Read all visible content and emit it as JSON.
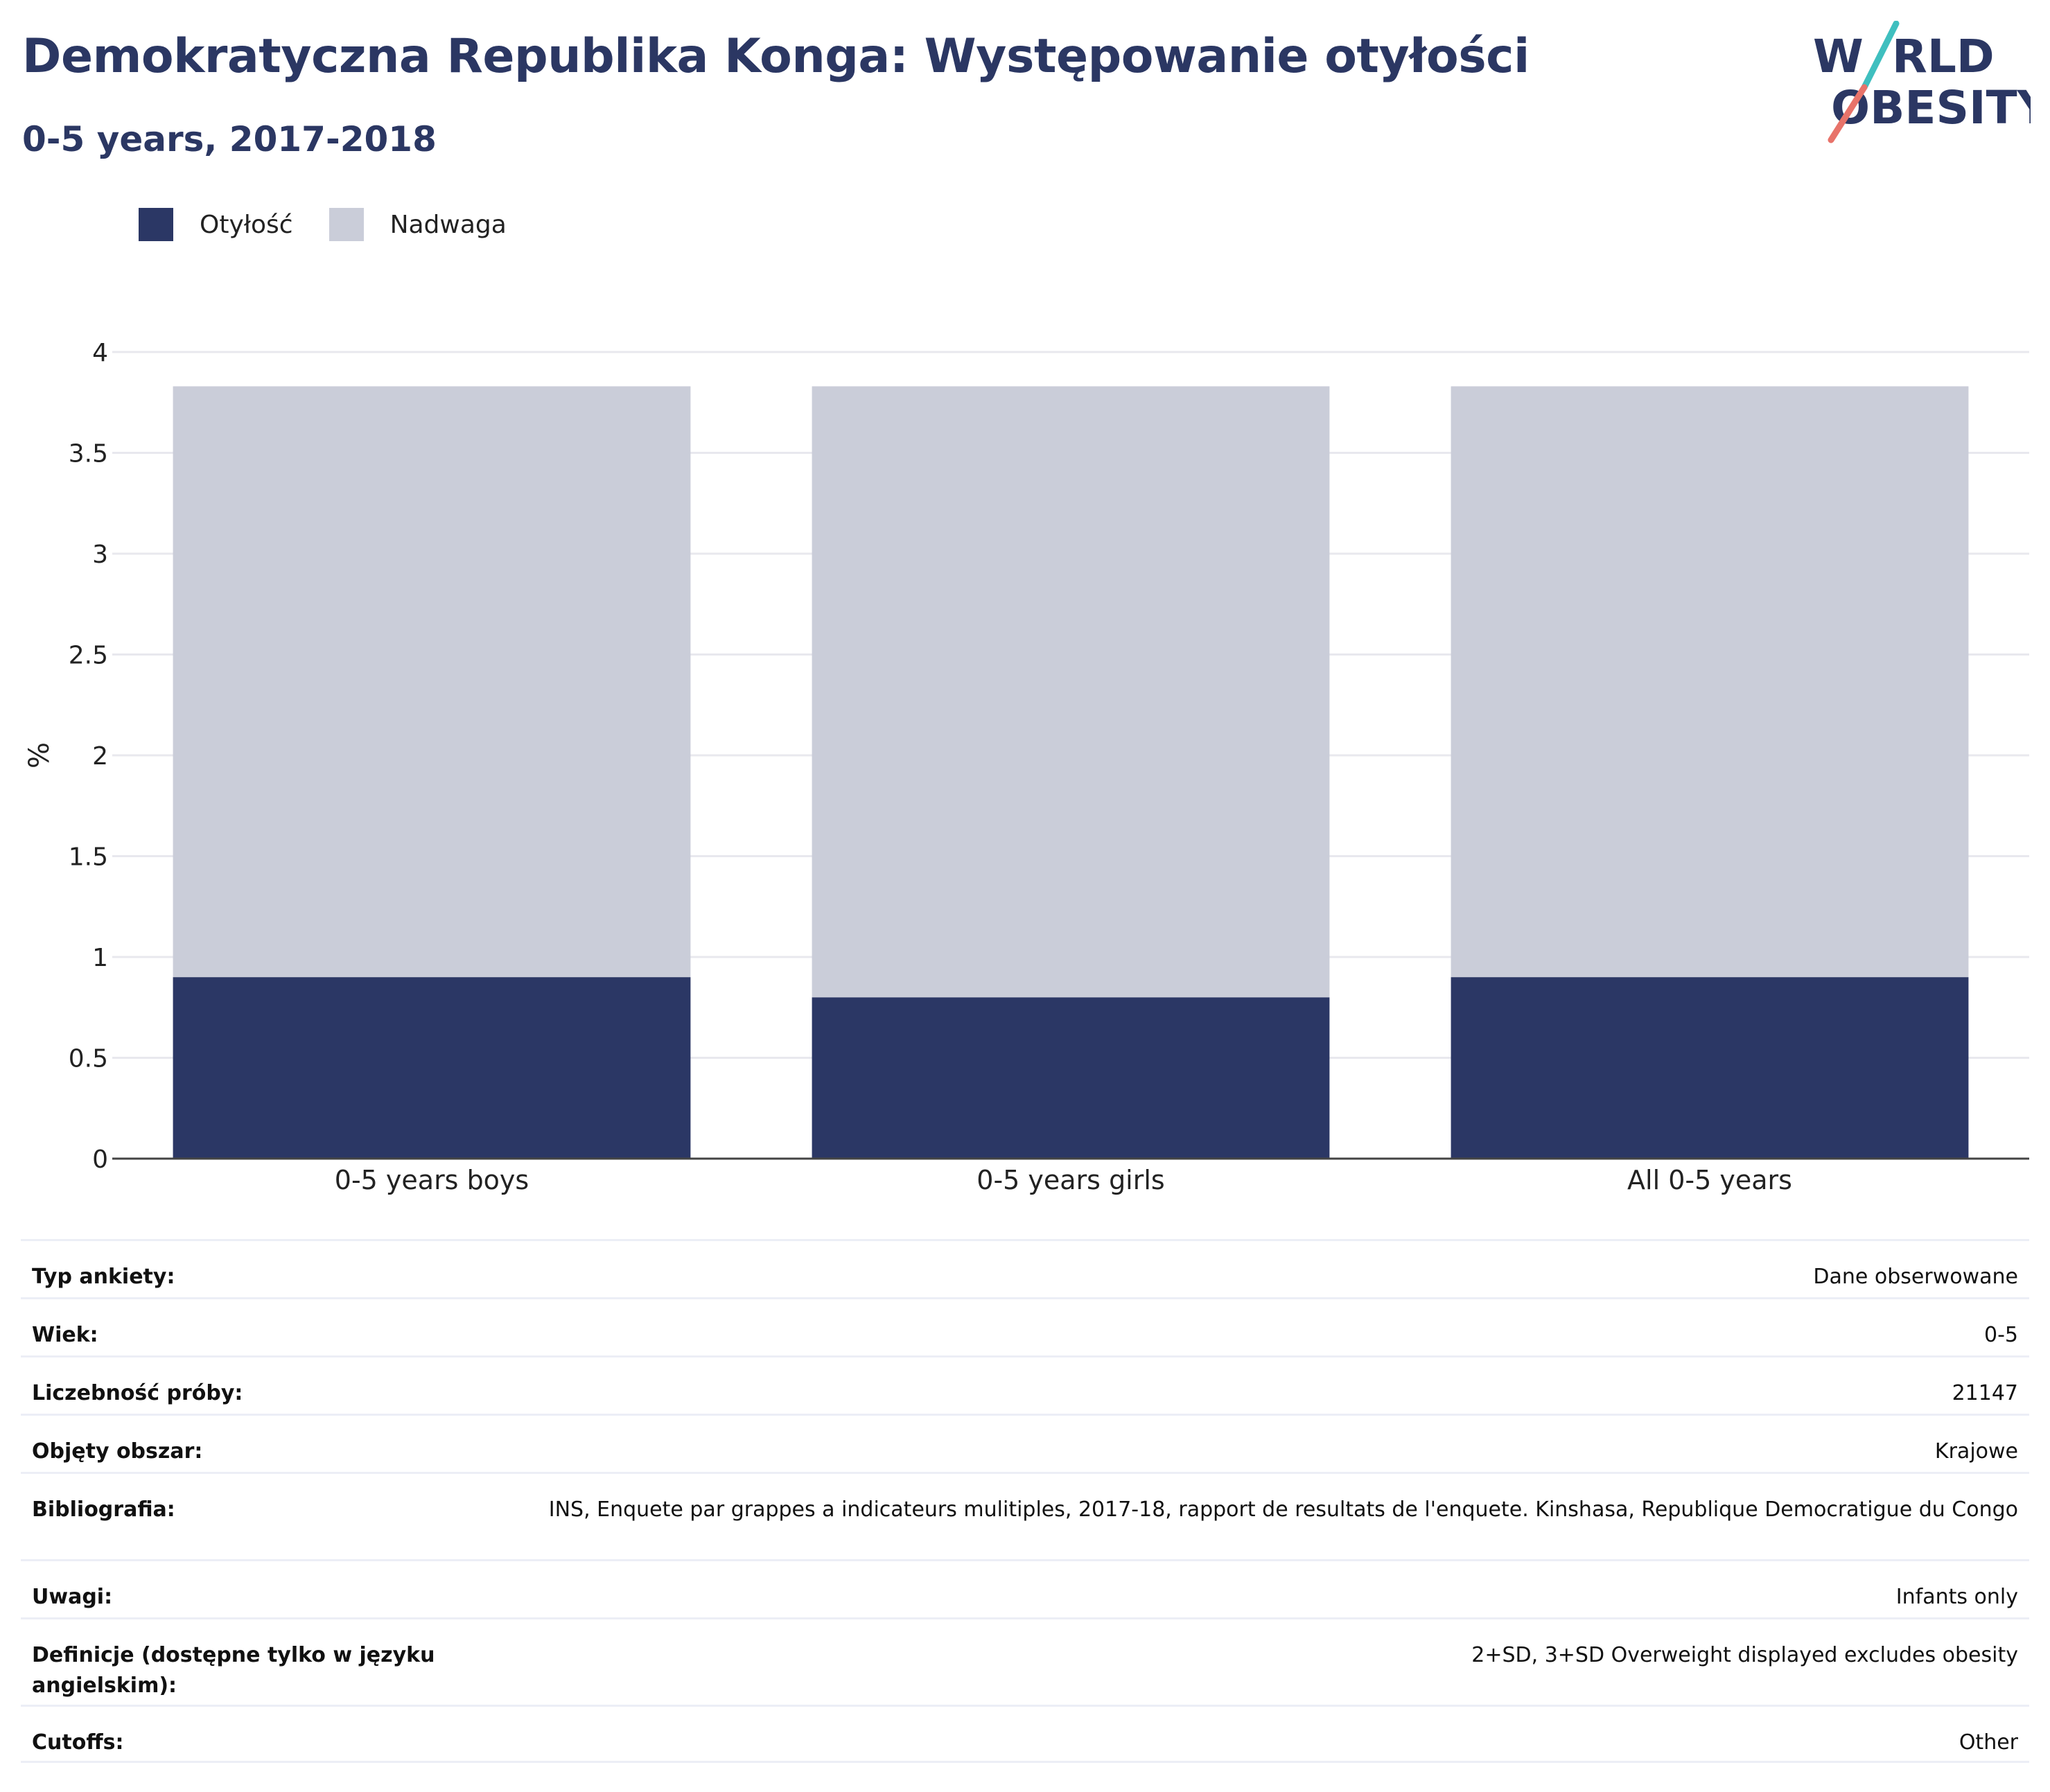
{
  "header": {
    "title": "Demokratyczna Republika Konga: Występowanie otyłości",
    "subtitle": "0-5 years, 2017-2018",
    "logo_text": [
      "W",
      "RLD",
      "OBESITY"
    ]
  },
  "colors": {
    "title": "#2b3763",
    "obesity": "#2b3765",
    "overweight": "#cacdd9",
    "grid": "#e8e8ee",
    "axis": "#444444",
    "logo_teal": "#3fbfbf",
    "logo_coral": "#e8736a"
  },
  "legend": {
    "items": [
      {
        "label": "Otyłość",
        "color": "#2b3765"
      },
      {
        "label": "Nadwaga",
        "color": "#cacdd9"
      }
    ]
  },
  "chart_data": {
    "type": "bar",
    "stacked": true,
    "categories": [
      "0-5 years boys",
      "0-5 years girls",
      "All 0-5 years"
    ],
    "series": [
      {
        "name": "Otyłość",
        "values": [
          0.9,
          0.8,
          0.9
        ]
      },
      {
        "name": "Nadwaga",
        "values": [
          2.93,
          3.03,
          2.93
        ]
      }
    ],
    "ylabel": "%",
    "xlabel": "",
    "ylim": [
      0,
      4
    ],
    "yticks": [
      0,
      0.5,
      1,
      1.5,
      2,
      2.5,
      3,
      3.5,
      4
    ],
    "grid": true,
    "legend_position": "top-left"
  },
  "info_table": {
    "rows": [
      {
        "label": "Typ ankiety:",
        "value": "Dane obserwowane"
      },
      {
        "label": "Wiek:",
        "value": "0-5"
      },
      {
        "label": "Liczebność próby:",
        "value": "21147"
      },
      {
        "label": "Objęty obszar:",
        "value": "Krajowe"
      },
      {
        "label": "Bibliografia:",
        "value": "INS, Enquete par grappes a indicateurs mulitiples, 2017-18, rapport de resultats de l'enquete. Kinshasa, Republique Democratigue du Congo"
      },
      {
        "label": "Uwagi:",
        "value": "Infants only"
      },
      {
        "label": "Definicje (dostępne tylko w języku angielskim):",
        "value": "2+SD, 3+SD Overweight displayed excludes obesity"
      },
      {
        "label": "Cutoffs:",
        "value": "Other"
      }
    ]
  }
}
